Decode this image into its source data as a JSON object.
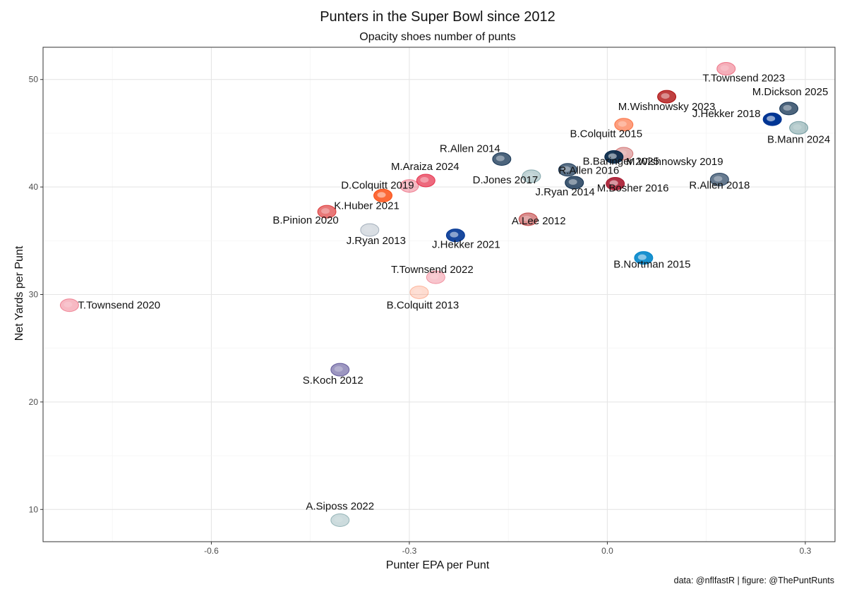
{
  "chart_data": {
    "type": "scatter",
    "title": "Punters in the Super Bowl since 2012",
    "subtitle": "Opacity shoes number of punts",
    "xlabel": "Punter EPA per Punt",
    "ylabel": "Net Yards per Punt",
    "caption": "data: @nflfastR | figure: @ThePuntRunts",
    "xlim": [
      -0.855,
      0.345
    ],
    "ylim": [
      7.0,
      53.0
    ],
    "x_ticks": [
      -0.6,
      -0.3,
      0.0,
      0.3
    ],
    "x_tick_labels": [
      "-0.6",
      "-0.3",
      "0.0",
      "0.3"
    ],
    "y_ticks": [
      10,
      20,
      30,
      40,
      50
    ],
    "y_tick_labels": [
      "10",
      "20",
      "30",
      "40",
      "50"
    ],
    "grid": true,
    "legend": "none",
    "team_colors": {
      "KC": "#E31837",
      "SF": "#AA0000",
      "SEA": "#002244",
      "LA": "#003594",
      "PHI": "#004C54",
      "DEN": "#FB4F14",
      "NE": "#002244",
      "ATL": "#A71930",
      "CIN": "#FB4F14",
      "TB": "#D50A0A",
      "BAL": "#241773",
      "CAR": "#0085CA"
    },
    "points": [
      {
        "label": "T.Townsend 2023",
        "team": "KC",
        "x": 0.18,
        "y": 51.0,
        "opacity": 0.35
      },
      {
        "label": "M.Wishnowsky 2023",
        "team": "SF",
        "x": 0.09,
        "y": 48.4,
        "opacity": 0.75
      },
      {
        "label": "M.Dickson 2025",
        "team": "SEA",
        "x": 0.275,
        "y": 47.3,
        "opacity": 0.7
      },
      {
        "label": "J.Hekker 2018",
        "team": "LA",
        "x": 0.25,
        "y": 46.3,
        "opacity": 1.0
      },
      {
        "label": "B.Mann 2024",
        "team": "PHI",
        "x": 0.29,
        "y": 45.5,
        "opacity": 0.3
      },
      {
        "label": "B.Colquitt 2015",
        "team": "DEN",
        "x": 0.025,
        "y": 45.8,
        "opacity": 0.55
      },
      {
        "label": "M.Wishnowsky 2019",
        "team": "SF",
        "x": 0.025,
        "y": 43.1,
        "opacity": 0.3
      },
      {
        "label": "R.Allen 2014",
        "team": "NE",
        "x": -0.16,
        "y": 42.6,
        "opacity": 0.7
      },
      {
        "label": "R.Allen 2016",
        "team": "NE",
        "x": -0.06,
        "y": 41.6,
        "opacity": 0.65
      },
      {
        "label": "B.Baringer 2025",
        "team": "NE",
        "x": 0.01,
        "y": 42.8,
        "opacity": 0.9
      },
      {
        "label": "R.Allen 2018",
        "team": "NE",
        "x": 0.17,
        "y": 40.7,
        "opacity": 0.6
      },
      {
        "label": "M.Araiza 2024",
        "team": "KC",
        "x": -0.275,
        "y": 40.6,
        "opacity": 0.65
      },
      {
        "label": "D.Jones 2017",
        "team": "PHI",
        "x": -0.115,
        "y": 41.0,
        "opacity": 0.25
      },
      {
        "label": "J.Ryan 2014",
        "team": "SEA",
        "x": -0.05,
        "y": 40.4,
        "opacity": 0.75
      },
      {
        "label": "M.Bosher 2016",
        "team": "ATL",
        "x": 0.012,
        "y": 40.3,
        "opacity": 0.9
      },
      {
        "label": "D.Colquitt 2019",
        "team": "KC",
        "x": -0.3,
        "y": 40.1,
        "opacity": 0.3
      },
      {
        "label": "K.Huber 2021",
        "team": "CIN",
        "x": -0.34,
        "y": 39.2,
        "opacity": 0.85
      },
      {
        "label": "B.Pinion 2020",
        "team": "TB",
        "x": -0.425,
        "y": 37.7,
        "opacity": 0.55
      },
      {
        "label": "A.Lee 2012",
        "team": "SF",
        "x": -0.12,
        "y": 37.0,
        "opacity": 0.45
      },
      {
        "label": "J.Ryan 2013",
        "team": "SEA",
        "x": -0.36,
        "y": 36.0,
        "opacity": 0.15
      },
      {
        "label": "J.Hekker 2021",
        "team": "LA",
        "x": -0.23,
        "y": 35.5,
        "opacity": 0.9
      },
      {
        "label": "B.Nortman 2015",
        "team": "CAR",
        "x": 0.055,
        "y": 33.4,
        "opacity": 0.9
      },
      {
        "label": "T.Townsend 2022",
        "team": "KC",
        "x": -0.26,
        "y": 31.6,
        "opacity": 0.25
      },
      {
        "label": "B.Colquitt 2013",
        "team": "DEN",
        "x": -0.285,
        "y": 30.2,
        "opacity": 0.2
      },
      {
        "label": "T.Townsend 2020",
        "team": "KC",
        "x": -0.815,
        "y": 29.0,
        "opacity": 0.3
      },
      {
        "label": "S.Koch 2012",
        "team": "BAL",
        "x": -0.405,
        "y": 23.0,
        "opacity": 0.45
      },
      {
        "label": "A.Siposs 2022",
        "team": "PHI",
        "x": -0.405,
        "y": 9.0,
        "opacity": 0.2
      }
    ]
  }
}
